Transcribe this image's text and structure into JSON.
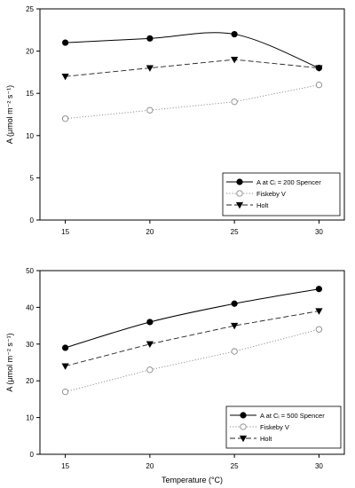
{
  "chart_data": [
    {
      "type": "line",
      "x": [
        15,
        20,
        25,
        30
      ],
      "xticks": [
        "15",
        "20",
        "25",
        "30"
      ],
      "xlim": [
        13.5,
        31.5
      ],
      "ylim": [
        0,
        25
      ],
      "yticks": [
        0,
        5,
        10,
        15,
        20,
        25
      ],
      "ylabel": "A (μmol m⁻² s⁻¹)",
      "xlabel": "",
      "legend": {
        "position": "bottom-right",
        "title": ""
      },
      "series": [
        {
          "name": "A at Cᵢ = 200  Spencer",
          "values": [
            21,
            21.5,
            22,
            18
          ],
          "marker": "filled-circle",
          "line": "solid",
          "smooth": true
        },
        {
          "name": "Fiskeby V",
          "values": [
            12,
            13,
            14,
            16
          ],
          "marker": "open-circle",
          "line": "dotted"
        },
        {
          "name": "Holt",
          "values": [
            17,
            18,
            19,
            18
          ],
          "marker": "filled-triangle-down",
          "line": "dashed"
        }
      ]
    },
    {
      "type": "line",
      "x": [
        15,
        20,
        25,
        30
      ],
      "xticks": [
        "15",
        "20",
        "25",
        "30"
      ],
      "xlim": [
        13.5,
        31.5
      ],
      "ylim": [
        0,
        50
      ],
      "yticks": [
        0,
        10,
        20,
        30,
        40,
        50
      ],
      "ylabel": "A (μmol m⁻² s⁻¹)",
      "xlabel": "Temperature (°C)",
      "legend": {
        "position": "bottom-right"
      },
      "series": [
        {
          "name": "A at Cᵢ = 500  Spencer",
          "values": [
            29,
            36,
            41,
            45
          ],
          "marker": "filled-circle",
          "line": "solid",
          "smooth": true
        },
        {
          "name": "Fiskeby V",
          "values": [
            17,
            23,
            28,
            34
          ],
          "marker": "open-circle",
          "line": "dotted"
        },
        {
          "name": "Holt",
          "values": [
            24,
            30,
            35,
            39
          ],
          "marker": "filled-triangle-down",
          "line": "dashed"
        }
      ]
    }
  ]
}
